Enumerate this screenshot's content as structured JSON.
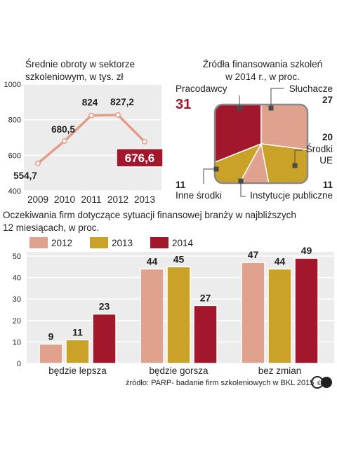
{
  "colors": {
    "salmon": "#e0a28e",
    "gold": "#c9a227",
    "crimson": "#a3172c",
    "line": "#e39c86",
    "panel": "#ececec",
    "text": "#231f20",
    "grid": "#d9d9d9"
  },
  "chart_data": [
    {
      "type": "line",
      "title": "Średnie obroty w sektorze szkoleniowym, w tys. zł",
      "title_lines": [
        "Średnie obroty w sektorze",
        "szkoleniowym, w tys. zł"
      ],
      "x": [
        "2009",
        "2010",
        "2011",
        "2012",
        "2013"
      ],
      "values": [
        554.7,
        680.5,
        824,
        827.2,
        676.6
      ],
      "labels": [
        "554,7",
        "680,5",
        "824",
        "827,2",
        "676,6"
      ],
      "ylim": [
        400,
        1000
      ],
      "yticks": [
        "400",
        "600",
        "800",
        "1000"
      ],
      "grid": true
    },
    {
      "type": "pie",
      "title": "Źródła finansowania szkoleń w 2014 r., w proc.",
      "title_lines": [
        "Źródła finansowania szkoleń",
        "w 2014 r., w proc."
      ],
      "slices": [
        {
          "label": "Pracodawcy",
          "value": 31,
          "value_label": "31"
        },
        {
          "label": "Słuchacze",
          "value": 27,
          "value_label": "27"
        },
        {
          "label": "Środki UE",
          "label_lines": [
            "Środki",
            "UE"
          ],
          "value": 20,
          "value_label": "20"
        },
        {
          "label": "Instytucje publiczne",
          "value": 11,
          "value_label": "11"
        },
        {
          "label": "Inne środki",
          "value": 11,
          "value_label": "11"
        }
      ]
    },
    {
      "type": "bar",
      "title": "Oczekiwania firm dotyczące sytuacji finansowej branży w najbliższych 12 miesiącach, w proc.",
      "title_lines": [
        "Oczekiwania firm dotyczące  sytuacji finansowej branży w najbliższych",
        " 12 miesiącach, w proc."
      ],
      "categories": [
        "będzie lepsza",
        "będzie gorsza",
        "bez zmian"
      ],
      "series": [
        {
          "name": "2012",
          "values": [
            9,
            44,
            47
          ]
        },
        {
          "name": "2013",
          "values": [
            11,
            45,
            44
          ]
        },
        {
          "name": "2014",
          "values": [
            23,
            27,
            49
          ]
        }
      ],
      "ylim": [
        0,
        50
      ],
      "yticks": [
        "0",
        "10",
        "20",
        "30",
        "40",
        "50"
      ],
      "legend": "top-left",
      "grid": true
    }
  ],
  "source": "źródło: PARP- badanie firm szkoleniowych w BKL 2015",
  "copyright": "©P"
}
